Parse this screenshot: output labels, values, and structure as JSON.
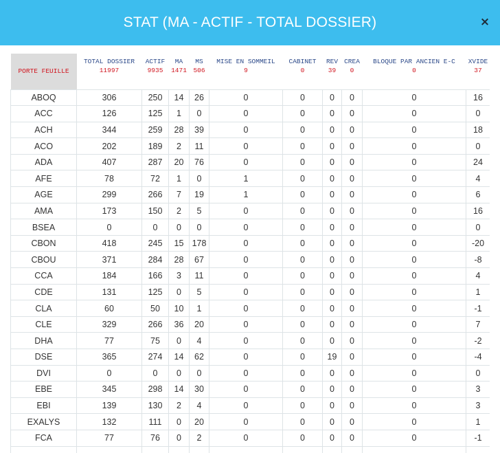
{
  "modal": {
    "title": "STAT (MA - ACTIF - TOTAL DOSSIER)",
    "close_label": "×"
  },
  "colors": {
    "header_bg": "#3dbdee",
    "header_text": "#ffffff",
    "total_text": "#d0141e",
    "label_text": "#2d4a8a",
    "corner_bg": "#dcdcdc"
  },
  "table": {
    "corner_label": "PORTE FEUILLE",
    "columns": [
      {
        "label": "TOTAL DOSSIER",
        "total": "11997"
      },
      {
        "label": "ACTIF",
        "total": "9935"
      },
      {
        "label": "MA",
        "total": "1471"
      },
      {
        "label": "MS",
        "total": "506"
      },
      {
        "label": "MISE EN SOMMEIL",
        "total": "9"
      },
      {
        "label": "CABINET",
        "total": "0"
      },
      {
        "label": "REV",
        "total": "39"
      },
      {
        "label": "CREA",
        "total": "0"
      },
      {
        "label": "BLOQUE PAR ANCIEN E-C",
        "total": "0"
      },
      {
        "label": "XVIDE",
        "total": "37"
      }
    ],
    "rows": [
      [
        "ABOQ",
        "306",
        "250",
        "14",
        "26",
        "0",
        "0",
        "0",
        "0",
        "0",
        "16"
      ],
      [
        "ACC",
        "126",
        "125",
        "1",
        "0",
        "0",
        "0",
        "0",
        "0",
        "0",
        "0"
      ],
      [
        "ACH",
        "344",
        "259",
        "28",
        "39",
        "0",
        "0",
        "0",
        "0",
        "0",
        "18"
      ],
      [
        "ACO",
        "202",
        "189",
        "2",
        "11",
        "0",
        "0",
        "0",
        "0",
        "0",
        "0"
      ],
      [
        "ADA",
        "407",
        "287",
        "20",
        "76",
        "0",
        "0",
        "0",
        "0",
        "0",
        "24"
      ],
      [
        "AFE",
        "78",
        "72",
        "1",
        "0",
        "1",
        "0",
        "0",
        "0",
        "0",
        "4"
      ],
      [
        "AGE",
        "299",
        "266",
        "7",
        "19",
        "1",
        "0",
        "0",
        "0",
        "0",
        "6"
      ],
      [
        "AMA",
        "173",
        "150",
        "2",
        "5",
        "0",
        "0",
        "0",
        "0",
        "0",
        "16"
      ],
      [
        "BSEA",
        "0",
        "0",
        "0",
        "0",
        "0",
        "0",
        "0",
        "0",
        "0",
        "0"
      ],
      [
        "CBON",
        "418",
        "245",
        "15",
        "178",
        "0",
        "0",
        "0",
        "0",
        "0",
        "-20"
      ],
      [
        "CBOU",
        "371",
        "284",
        "28",
        "67",
        "0",
        "0",
        "0",
        "0",
        "0",
        "-8"
      ],
      [
        "CCA",
        "184",
        "166",
        "3",
        "11",
        "0",
        "0",
        "0",
        "0",
        "0",
        "4"
      ],
      [
        "CDE",
        "131",
        "125",
        "0",
        "5",
        "0",
        "0",
        "0",
        "0",
        "0",
        "1"
      ],
      [
        "CLA",
        "60",
        "50",
        "10",
        "1",
        "0",
        "0",
        "0",
        "0",
        "0",
        "-1"
      ],
      [
        "CLE",
        "329",
        "266",
        "36",
        "20",
        "0",
        "0",
        "0",
        "0",
        "0",
        "7"
      ],
      [
        "DHA",
        "77",
        "75",
        "0",
        "4",
        "0",
        "0",
        "0",
        "0",
        "0",
        "-2"
      ],
      [
        "DSE",
        "365",
        "274",
        "14",
        "62",
        "0",
        "0",
        "19",
        "0",
        "0",
        "-4"
      ],
      [
        "DVI",
        "0",
        "0",
        "0",
        "0",
        "0",
        "0",
        "0",
        "0",
        "0",
        "0"
      ],
      [
        "EBE",
        "345",
        "298",
        "14",
        "30",
        "0",
        "0",
        "0",
        "0",
        "0",
        "3"
      ],
      [
        "EBI",
        "139",
        "130",
        "2",
        "4",
        "0",
        "0",
        "0",
        "0",
        "0",
        "3"
      ],
      [
        "EXALYS",
        "132",
        "111",
        "0",
        "20",
        "0",
        "0",
        "0",
        "0",
        "0",
        "1"
      ],
      [
        "FCA",
        "77",
        "76",
        "0",
        "2",
        "0",
        "0",
        "0",
        "0",
        "0",
        "-1"
      ],
      [
        "",
        "",
        "",
        "",
        "",
        "",
        "",
        "",
        "",
        "",
        ""
      ]
    ]
  }
}
